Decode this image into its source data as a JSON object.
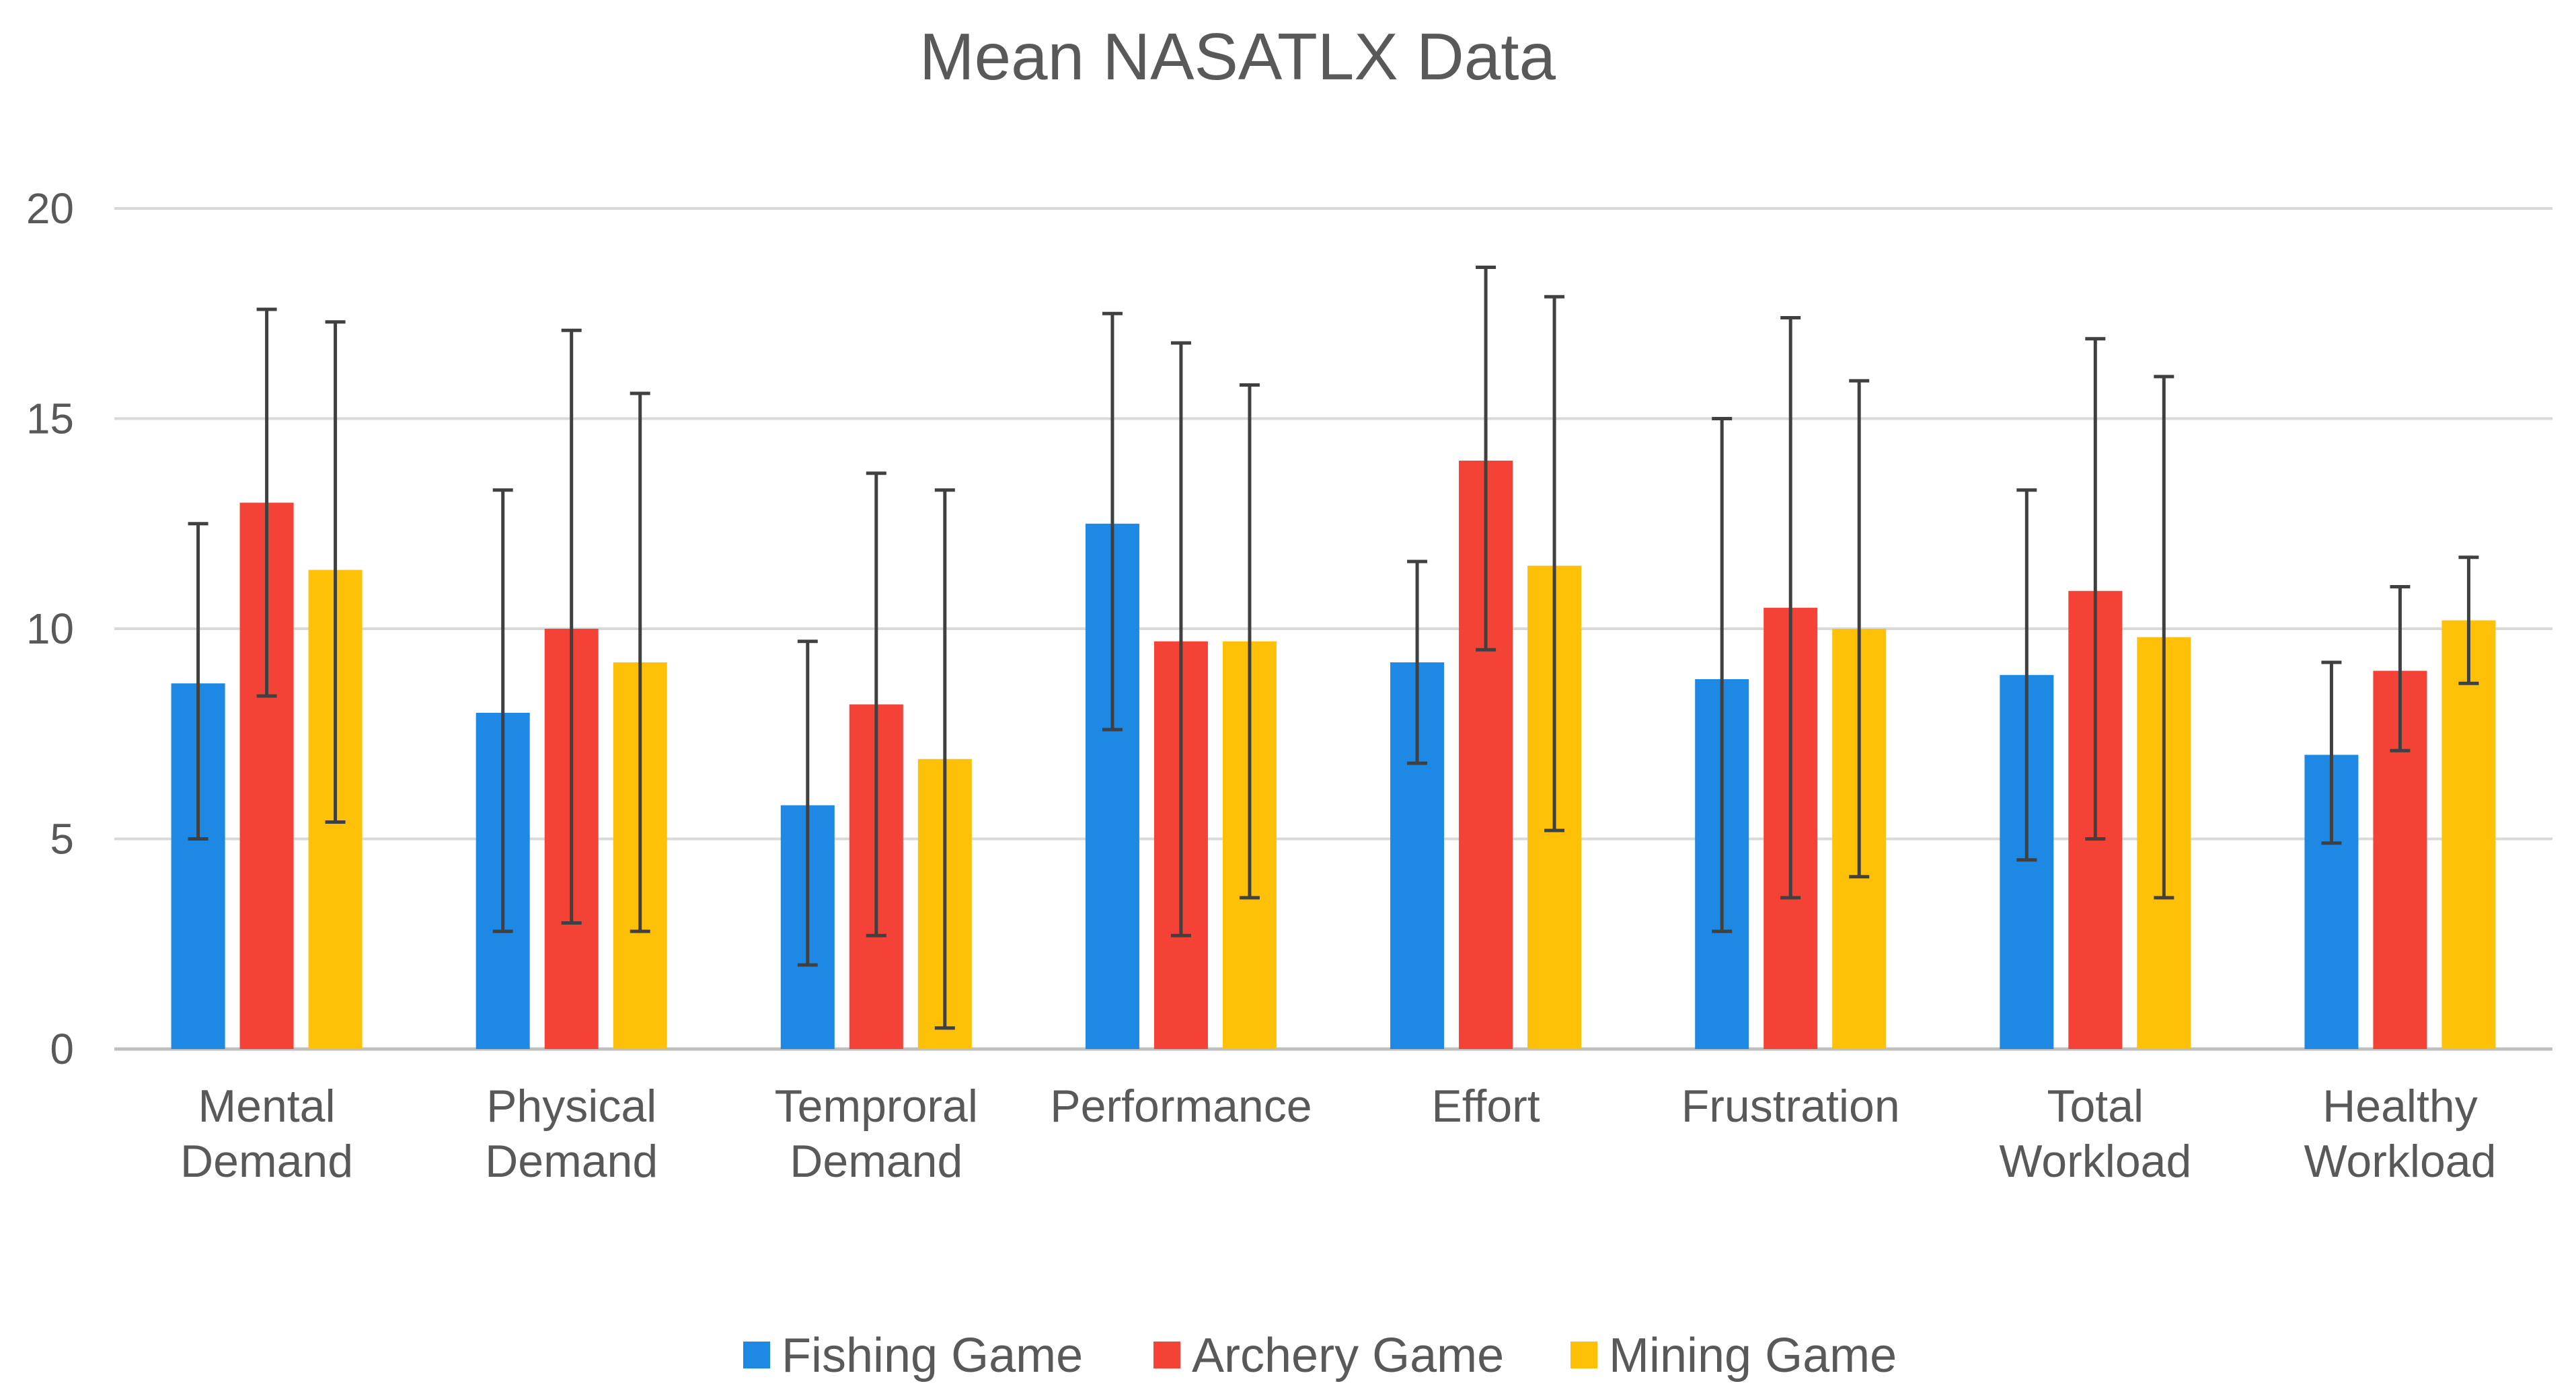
{
  "chart_data": {
    "type": "bar",
    "title": "Mean NASATLX Data",
    "xlabel": "",
    "ylabel": "",
    "ylim": [
      0,
      20
    ],
    "yticks": [
      0,
      5,
      10,
      15,
      20
    ],
    "grid": true,
    "legend_position": "bottom",
    "categories": [
      [
        "Mental",
        "Demand"
      ],
      [
        "Physical",
        "Demand"
      ],
      [
        "Temproral",
        "Demand"
      ],
      [
        "Performance"
      ],
      [
        "Effort"
      ],
      [
        "Frustration"
      ],
      [
        "Total",
        "Workload"
      ],
      [
        "Healthy",
        "Workload"
      ]
    ],
    "series": [
      {
        "name": "Fishing Game",
        "color": "#1E88E5",
        "values": [
          8.7,
          8.0,
          5.8,
          12.5,
          9.2,
          8.8,
          8.9,
          7.0
        ],
        "error_low": [
          5.0,
          2.8,
          2.0,
          7.6,
          6.8,
          2.8,
          4.5,
          4.9
        ],
        "error_high": [
          12.5,
          13.3,
          9.7,
          17.5,
          11.6,
          15.0,
          13.3,
          9.2
        ]
      },
      {
        "name": "Archery Game",
        "color": "#F44336",
        "values": [
          13.0,
          10.0,
          8.2,
          9.7,
          14.0,
          10.5,
          10.9,
          9.0
        ],
        "error_low": [
          8.4,
          3.0,
          2.7,
          2.7,
          9.5,
          3.6,
          5.0,
          7.1
        ],
        "error_high": [
          17.6,
          17.1,
          13.7,
          16.8,
          18.6,
          17.4,
          16.9,
          11.0
        ]
      },
      {
        "name": "Mining Game",
        "color": "#FFC107",
        "values": [
          11.4,
          9.2,
          6.9,
          9.7,
          11.5,
          10.0,
          9.8,
          10.2
        ],
        "error_low": [
          5.4,
          2.8,
          0.5,
          3.6,
          5.2,
          4.1,
          3.6,
          8.7
        ],
        "error_high": [
          17.3,
          15.6,
          13.3,
          15.8,
          17.9,
          15.9,
          16.0,
          11.7
        ]
      }
    ]
  }
}
